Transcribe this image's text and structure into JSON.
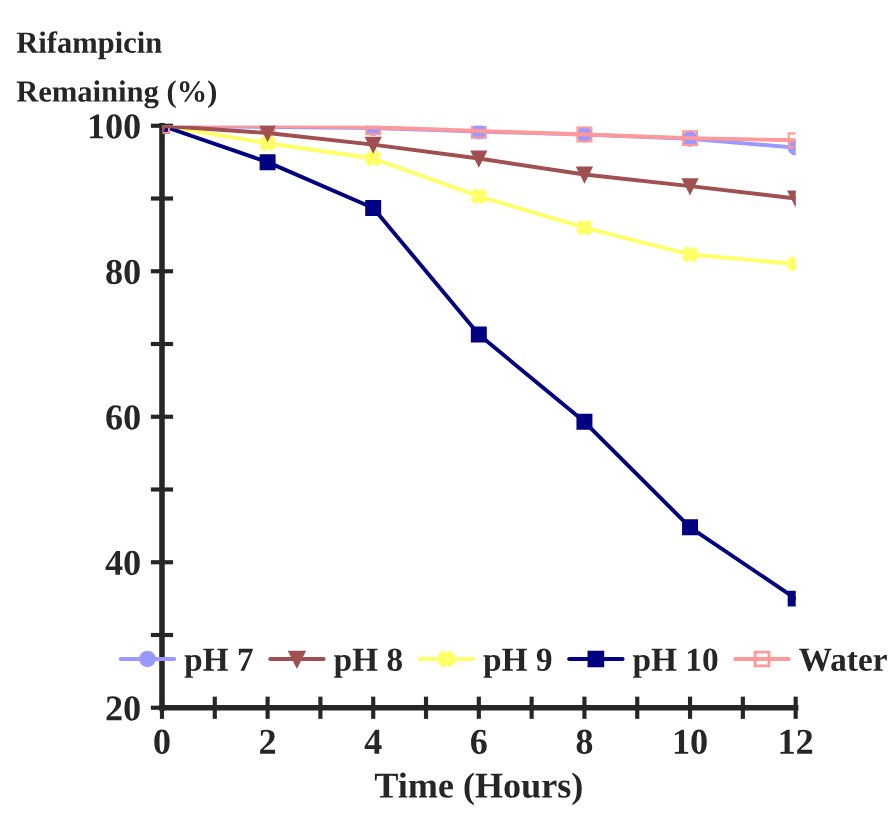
{
  "chart_data": {
    "type": "line",
    "ylabel": "Rifampicin\nRemaining (%)",
    "xlabel": "Time (Hours)",
    "x": [
      0,
      2,
      4,
      6,
      8,
      10,
      12
    ],
    "series": [
      {
        "name": "pH 7",
        "color": "#9999ff",
        "marker": "circle",
        "values": [
          100,
          null,
          99.7,
          99.2,
          98.8,
          98.2,
          97
        ]
      },
      {
        "name": "pH 8",
        "color": "#a05050",
        "marker": "triangle",
        "values": [
          100,
          99,
          97.4,
          95.5,
          93.3,
          91.7,
          90
        ]
      },
      {
        "name": "pH 9",
        "color": "#ffff66",
        "marker": "cross",
        "values": [
          100,
          97.6,
          95.5,
          90.3,
          86,
          82.3,
          81
        ]
      },
      {
        "name": "pH 10",
        "color": "#000080",
        "marker": "square",
        "values": [
          100,
          95,
          88.7,
          71.3,
          59.3,
          44.8,
          35
        ]
      },
      {
        "name": "Water",
        "color": "#ff9999",
        "marker": "square",
        "values": [
          100,
          100,
          99.8,
          99.3,
          98.8,
          98.3,
          98
        ]
      }
    ],
    "xlim": [
      0,
      12
    ],
    "ylim": [
      20,
      100
    ],
    "xticks": [
      0,
      {
        "value": 1,
        "label": null
      },
      2,
      {
        "value": 3,
        "label": null
      },
      4,
      {
        "value": 5,
        "label": null
      },
      6,
      {
        "value": 7,
        "label": null
      },
      8,
      {
        "value": 9,
        "label": null
      },
      10,
      {
        "value": 11,
        "label": null
      },
      12
    ],
    "yticks": [
      20,
      {
        "value": 30,
        "label": null
      },
      40,
      {
        "value": 50,
        "label": null
      },
      60,
      {
        "value": 70,
        "label": null
      },
      80,
      {
        "value": 90,
        "label": null
      },
      100
    ],
    "grid": false,
    "legend": "bottom",
    "line_style": "solid"
  }
}
